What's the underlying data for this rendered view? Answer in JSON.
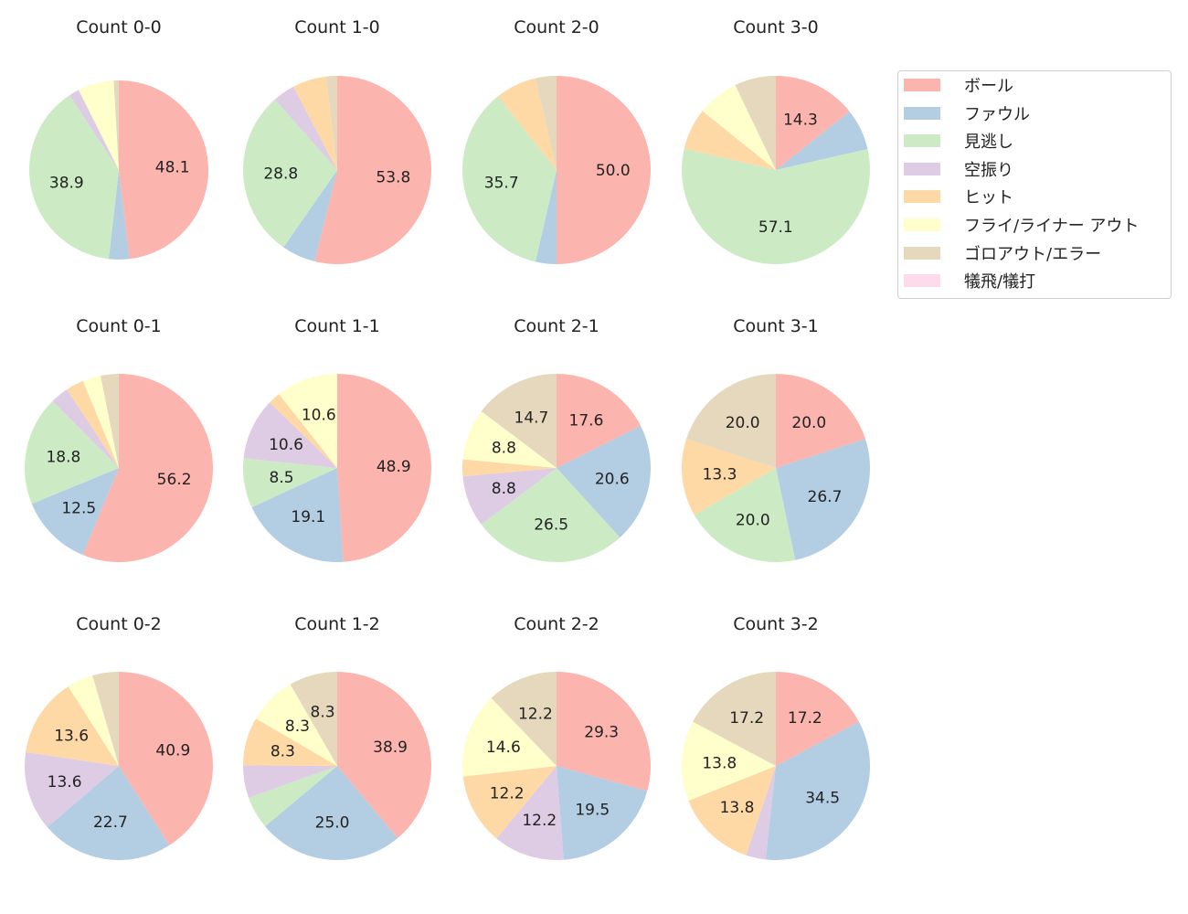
{
  "chart_data": {
    "type": "pie",
    "legend": {
      "position": "right",
      "entries": [
        "ボール",
        "ファウル",
        "見逃し",
        "空振り",
        "ヒット",
        "フライ/ライナー アウト",
        "ゴロアウト/エラー",
        "犠飛/犠打"
      ]
    },
    "colors": [
      "#fbb4ae",
      "#b3cde3",
      "#ccebc5",
      "#decbe4",
      "#fed9a6",
      "#ffffcc",
      "#e5d8bd",
      "#fddaec"
    ],
    "charts": [
      {
        "title": "Count 0-0",
        "values": [
          48.1,
          3.7,
          38.9,
          1.9,
          0,
          6.5,
          0.9,
          0
        ]
      },
      {
        "title": "Count 1-0",
        "values": [
          53.8,
          5.8,
          28.8,
          3.8,
          5.8,
          0,
          1.9,
          0
        ]
      },
      {
        "title": "Count 2-0",
        "values": [
          50.0,
          3.6,
          35.7,
          0,
          7.1,
          0,
          3.6,
          0
        ]
      },
      {
        "title": "Count 3-0",
        "values": [
          14.3,
          7.1,
          57.1,
          0,
          7.1,
          7.1,
          7.1,
          0
        ]
      },
      {
        "title": "Count 0-1",
        "values": [
          56.2,
          12.5,
          18.8,
          3.1,
          3.1,
          3.1,
          3.1,
          0
        ]
      },
      {
        "title": "Count 1-1",
        "values": [
          48.9,
          19.1,
          8.5,
          10.6,
          2.1,
          10.6,
          0,
          0
        ]
      },
      {
        "title": "Count 2-1",
        "values": [
          17.6,
          20.6,
          26.5,
          8.8,
          2.9,
          8.8,
          14.7,
          0
        ]
      },
      {
        "title": "Count 3-1",
        "values": [
          20.0,
          26.7,
          20.0,
          0,
          13.3,
          0,
          20.0,
          0
        ]
      },
      {
        "title": "Count 0-2",
        "values": [
          40.9,
          22.7,
          0,
          13.6,
          13.6,
          4.5,
          4.5,
          0
        ]
      },
      {
        "title": "Count 1-2",
        "values": [
          38.9,
          25.0,
          5.6,
          5.6,
          8.3,
          8.3,
          8.3,
          0
        ]
      },
      {
        "title": "Count 2-2",
        "values": [
          29.3,
          19.5,
          0,
          12.2,
          12.2,
          14.6,
          12.2,
          0
        ]
      },
      {
        "title": "Count 3-2",
        "values": [
          17.2,
          34.5,
          0,
          3.4,
          13.8,
          13.8,
          17.2,
          0
        ]
      }
    ]
  }
}
